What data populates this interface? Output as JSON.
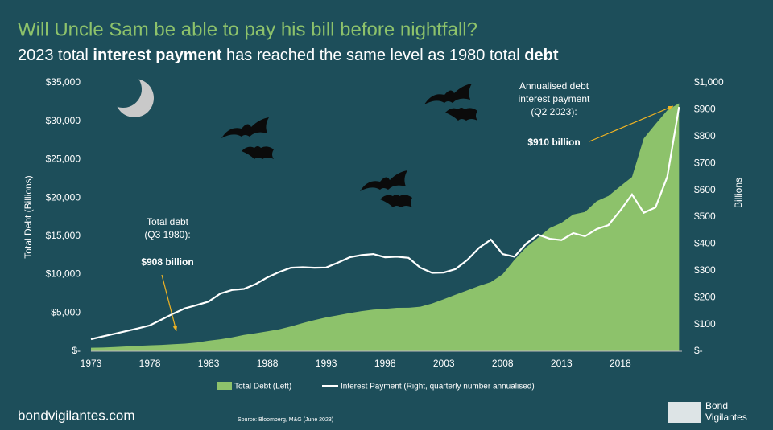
{
  "chart_data": {
    "type": "area-line",
    "title": "Will Uncle Sam be able to pay his bill before nightfall?",
    "subtitle": [
      "2023 total ",
      "interest payment",
      " has reached the same level as 1980 total ",
      "debt"
    ],
    "y_label": "Total Debt (Billions)",
    "y2_label": "Billions",
    "x": [
      1973,
      1974,
      1975,
      1976,
      1977,
      1978,
      1979,
      1980,
      1981,
      1982,
      1983,
      1984,
      1985,
      1986,
      1987,
      1988,
      1989,
      1990,
      1991,
      1992,
      1993,
      1994,
      1995,
      1996,
      1997,
      1998,
      1999,
      2000,
      2001,
      2002,
      2003,
      2004,
      2005,
      2006,
      2007,
      2008,
      2009,
      2010,
      2011,
      2012,
      2013,
      2014,
      2015,
      2016,
      2017,
      2018,
      2019,
      2020,
      2021,
      2022,
      2023
    ],
    "series": [
      {
        "name": "Total Debt (Left)",
        "color": "#8dc26b",
        "values": [
          466,
          484,
          542,
          629,
          706,
          777,
          829,
          908,
          995,
          1137,
          1372,
          1565,
          1818,
          2121,
          2346,
          2602,
          2857,
          3233,
          3665,
          4065,
          4411,
          4693,
          4974,
          5225,
          5413,
          5526,
          5656,
          5674,
          5807,
          6228,
          6783,
          7379,
          7933,
          8507,
          9008,
          10025,
          11910,
          13562,
          14790,
          16066,
          16738,
          17824,
          18151,
          19573,
          20245,
          21516,
          22719,
          27748,
          29617,
          31420,
          32330
        ]
      },
      {
        "name": "Interest Payment (Right, quarterly number annualised)",
        "color": "#ffffff",
        "axis": "y2",
        "values": [
          45,
          55,
          65,
          75,
          85,
          96,
          118,
          140,
          160,
          172,
          185,
          215,
          228,
          232,
          250,
          275,
          295,
          311,
          313,
          311,
          312,
          330,
          350,
          358,
          362,
          350,
          352,
          348,
          311,
          292,
          293,
          306,
          340,
          385,
          416,
          362,
          352,
          401,
          434,
          419,
          414,
          440,
          428,
          455,
          470,
          524,
          584,
          516,
          536,
          650,
          910
        ]
      }
    ],
    "xlim": [
      1973,
      2023.25
    ],
    "ylim": [
      0,
      35000
    ],
    "y2lim": [
      0,
      1000
    ],
    "xticks": [
      1973,
      1978,
      1983,
      1988,
      1993,
      1998,
      2003,
      2008,
      2013,
      2018
    ],
    "yticks": [
      {
        "value": 0,
        "label": "$-"
      },
      {
        "value": 5000,
        "label": "$5,000"
      },
      {
        "value": 10000,
        "label": "$10,000"
      },
      {
        "value": 15000,
        "label": "$15,000"
      },
      {
        "value": 20000,
        "label": "$20,000"
      },
      {
        "value": 25000,
        "label": "$25,000"
      },
      {
        "value": 30000,
        "label": "$30,000"
      },
      {
        "value": 35000,
        "label": "$35,000"
      }
    ],
    "y2ticks": [
      {
        "value": 0,
        "label": "$-"
      },
      {
        "value": 100,
        "label": "$100"
      },
      {
        "value": 200,
        "label": "$200"
      },
      {
        "value": 300,
        "label": "$300"
      },
      {
        "value": 400,
        "label": "$400"
      },
      {
        "value": 500,
        "label": "$500"
      },
      {
        "value": 600,
        "label": "$600"
      },
      {
        "value": 700,
        "label": "$700"
      },
      {
        "value": 800,
        "label": "$800"
      },
      {
        "value": 900,
        "label": "$900"
      },
      {
        "value": 1000,
        "label": "$1,000"
      }
    ],
    "annotations": [
      {
        "lines": [
          "Total debt",
          "(Q3 1980):"
        ],
        "value_label": "$908 billion"
      },
      {
        "lines": [
          "Annualised debt",
          "interest payment",
          "(Q2 2023):"
        ],
        "value_label": "$910 billion"
      }
    ],
    "source": "Source: Bloomberg, M&G (June 2023)"
  },
  "footer": {
    "site": "bondvigilantes.com",
    "logo": [
      "Bond",
      "Vigilantes"
    ]
  }
}
